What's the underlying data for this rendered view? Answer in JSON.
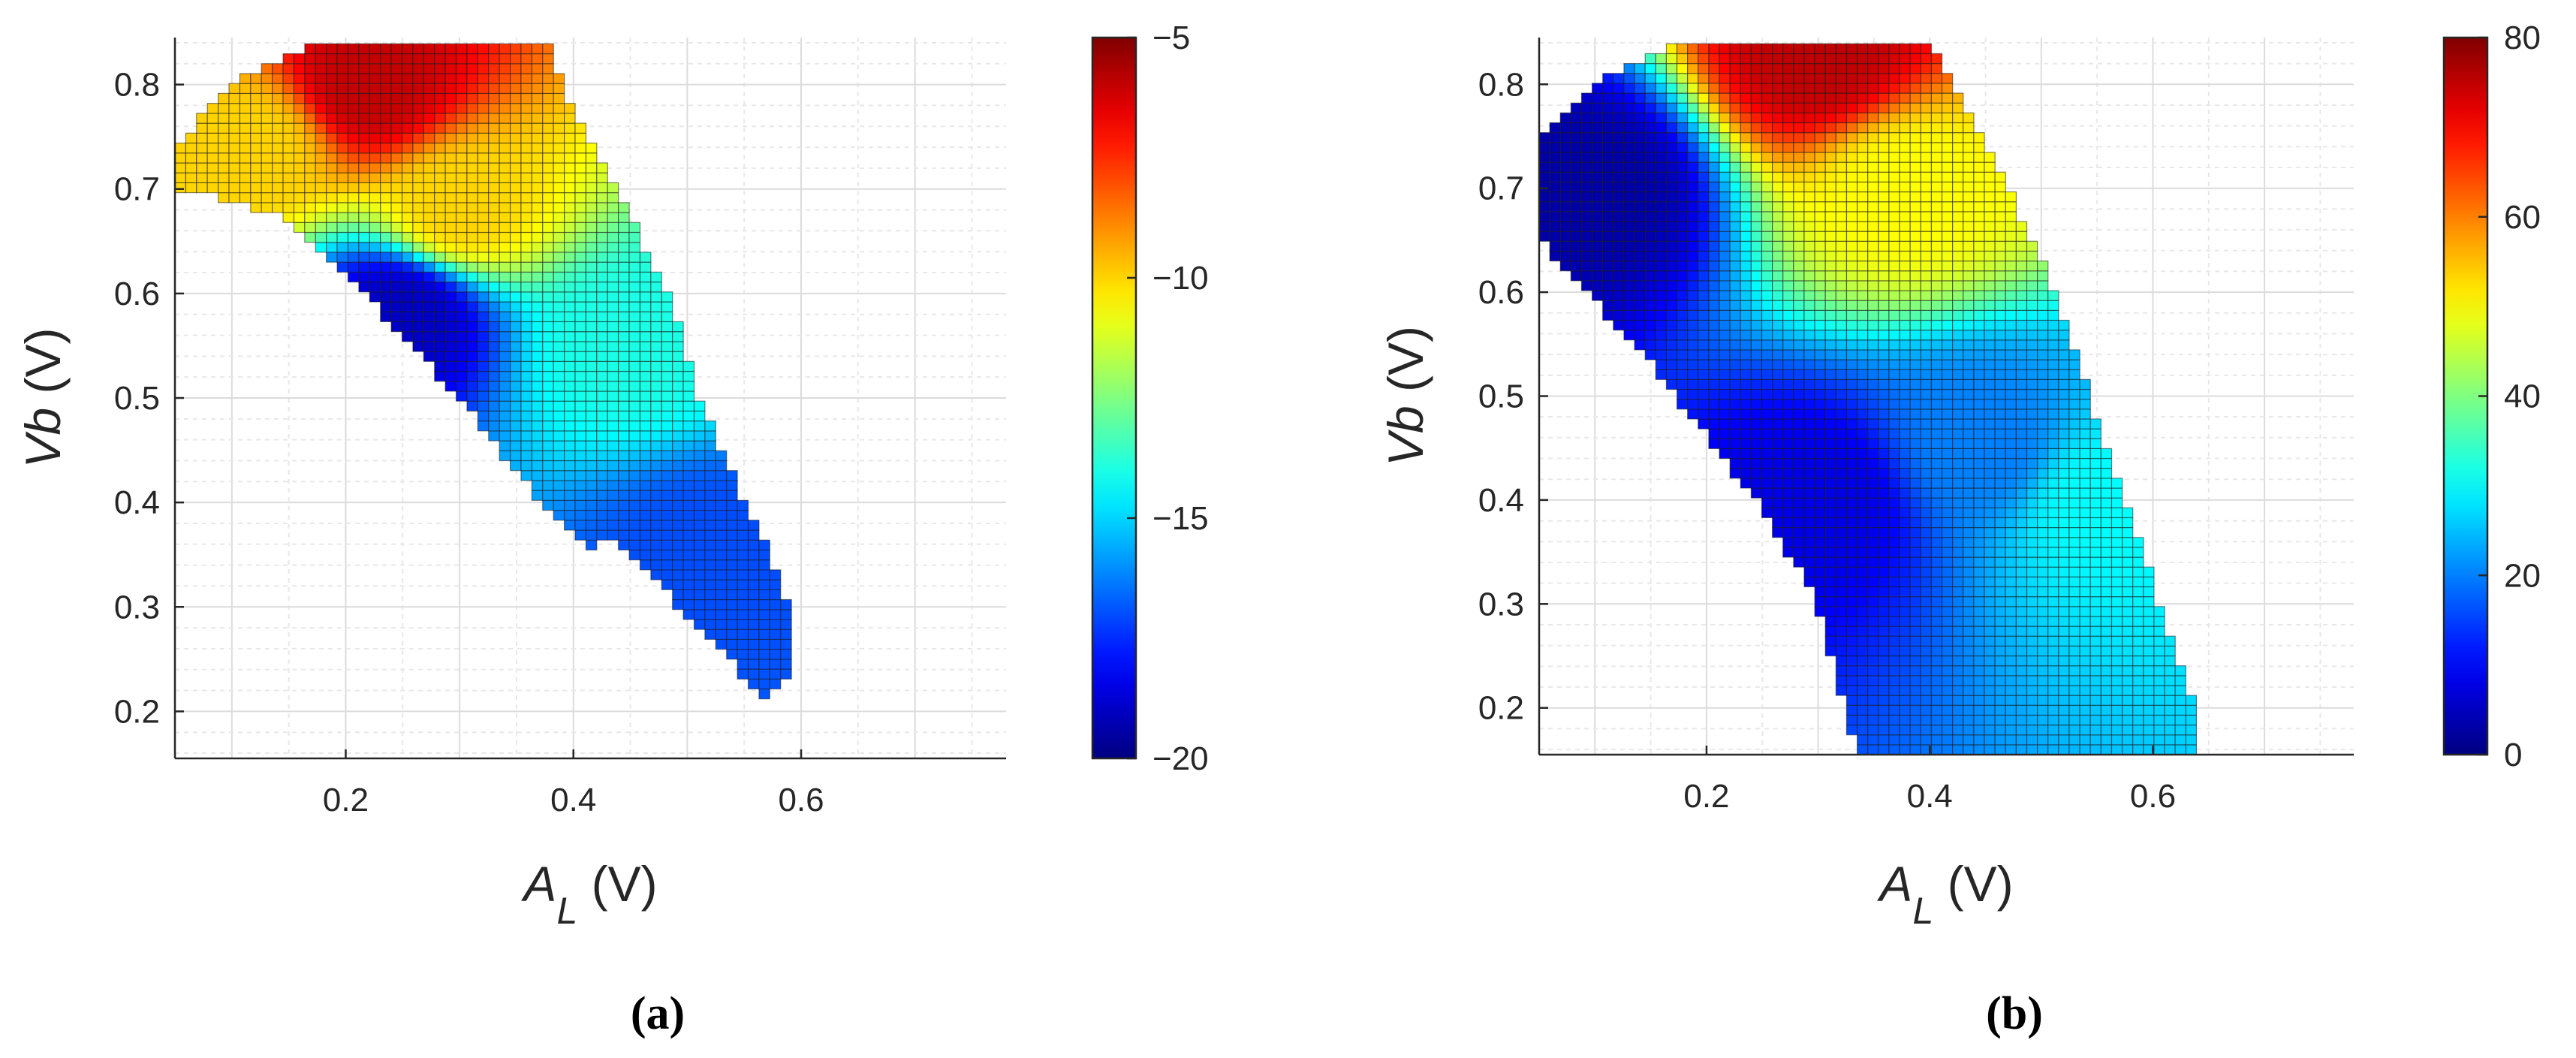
{
  "figure": {
    "panels_caption": [
      {
        "open": "(",
        "letter": "a",
        "close": ")"
      },
      {
        "open": "(",
        "letter": "b",
        "close": ")"
      }
    ]
  },
  "chart_data": [
    {
      "type": "heatmap",
      "panel": "a",
      "xlabel": {
        "main": "A",
        "sub": "L",
        "unit": " (V)"
      },
      "ylabel": {
        "italic": "Vb",
        "unit": " (V)"
      },
      "xlim": [
        0.05,
        0.78
      ],
      "ylim": [
        0.155,
        0.845
      ],
      "xticks": [
        0.2,
        0.4,
        0.6
      ],
      "xtick_labels": [
        "0.2",
        "0.4",
        "0.6"
      ],
      "yticks": [
        0.2,
        0.3,
        0.4,
        0.5,
        0.6,
        0.7,
        0.8
      ],
      "ytick_labels": [
        "0.2",
        "0.3",
        "0.4",
        "0.5",
        "0.6",
        "0.7",
        "0.8"
      ],
      "grid": true,
      "minor_grid": true,
      "colormap": "jet",
      "colorbar": {
        "range": [
          -20,
          -5
        ],
        "ticks": [
          -20,
          -15,
          -10,
          -5
        ],
        "tick_labels": [
          "−20",
          "−15",
          "−10",
          "−5"
        ]
      },
      "valid_region_outline": [
        [
          0.05,
          0.7
        ],
        [
          0.1,
          0.69
        ],
        [
          0.15,
          0.67
        ],
        [
          0.2,
          0.62
        ],
        [
          0.25,
          0.56
        ],
        [
          0.3,
          0.5
        ],
        [
          0.35,
          0.43
        ],
        [
          0.4,
          0.365
        ],
        [
          0.42,
          0.35
        ],
        [
          0.43,
          0.37
        ],
        [
          0.46,
          0.34
        ],
        [
          0.5,
          0.29
        ],
        [
          0.54,
          0.245
        ],
        [
          0.57,
          0.212
        ],
        [
          0.59,
          0.23
        ],
        [
          0.59,
          0.3
        ],
        [
          0.57,
          0.36
        ],
        [
          0.55,
          0.4
        ],
        [
          0.53,
          0.45
        ],
        [
          0.51,
          0.5
        ],
        [
          0.49,
          0.58
        ],
        [
          0.46,
          0.65
        ],
        [
          0.44,
          0.7
        ],
        [
          0.42,
          0.74
        ],
        [
          0.39,
          0.8
        ],
        [
          0.38,
          0.84
        ],
        [
          0.17,
          0.84
        ],
        [
          0.1,
          0.8
        ],
        [
          0.05,
          0.74
        ]
      ],
      "value_field": {
        "description_points": [
          {
            "x": 0.22,
            "y": 0.8,
            "value": -6
          },
          {
            "x": 0.12,
            "y": 0.74,
            "value": -10
          },
          {
            "x": 0.3,
            "y": 0.68,
            "value": -10
          },
          {
            "x": 0.45,
            "y": 0.55,
            "value": -14
          },
          {
            "x": 0.52,
            "y": 0.35,
            "value": -17
          },
          {
            "x": 0.25,
            "y": 0.58,
            "value": -19
          }
        ]
      }
    },
    {
      "type": "heatmap",
      "panel": "b",
      "xlabel": {
        "main": "A",
        "sub": "L",
        "unit": " (V)"
      },
      "ylabel": {
        "italic": "Vb",
        "unit": " (V)"
      },
      "xlim": [
        0.05,
        0.78
      ],
      "ylim": [
        0.155,
        0.845
      ],
      "xticks": [
        0.2,
        0.4,
        0.6
      ],
      "xtick_labels": [
        "0.2",
        "0.4",
        "0.6"
      ],
      "yticks": [
        0.2,
        0.3,
        0.4,
        0.5,
        0.6,
        0.7,
        0.8
      ],
      "ytick_labels": [
        "0.2",
        "0.3",
        "0.4",
        "0.5",
        "0.6",
        "0.7",
        "0.8"
      ],
      "grid": true,
      "minor_grid": true,
      "colormap": "jet",
      "colorbar": {
        "range": [
          0,
          80
        ],
        "ticks": [
          0,
          20,
          40,
          60,
          80
        ],
        "tick_labels": [
          "0",
          "20",
          "40",
          "60",
          "80"
        ]
      },
      "valid_region_outline": [
        [
          0.05,
          0.65
        ],
        [
          0.1,
          0.59
        ],
        [
          0.15,
          0.53
        ],
        [
          0.2,
          0.46
        ],
        [
          0.25,
          0.39
        ],
        [
          0.3,
          0.3
        ],
        [
          0.335,
          0.155
        ],
        [
          0.64,
          0.155
        ],
        [
          0.64,
          0.19
        ],
        [
          0.62,
          0.25
        ],
        [
          0.6,
          0.32
        ],
        [
          0.58,
          0.38
        ],
        [
          0.56,
          0.44
        ],
        [
          0.54,
          0.51
        ],
        [
          0.52,
          0.57
        ],
        [
          0.5,
          0.63
        ],
        [
          0.47,
          0.7
        ],
        [
          0.44,
          0.76
        ],
        [
          0.41,
          0.82
        ],
        [
          0.4,
          0.84
        ],
        [
          0.17,
          0.84
        ],
        [
          0.1,
          0.8
        ],
        [
          0.05,
          0.75
        ]
      ],
      "value_field": {
        "description_points": [
          {
            "x": 0.1,
            "y": 0.7,
            "value": 3
          },
          {
            "x": 0.3,
            "y": 0.4,
            "value": 8
          },
          {
            "x": 0.45,
            "y": 0.45,
            "value": 20
          },
          {
            "x": 0.55,
            "y": 0.4,
            "value": 30
          },
          {
            "x": 0.38,
            "y": 0.7,
            "value": 50
          },
          {
            "x": 0.3,
            "y": 0.83,
            "value": 75
          }
        ]
      }
    }
  ]
}
